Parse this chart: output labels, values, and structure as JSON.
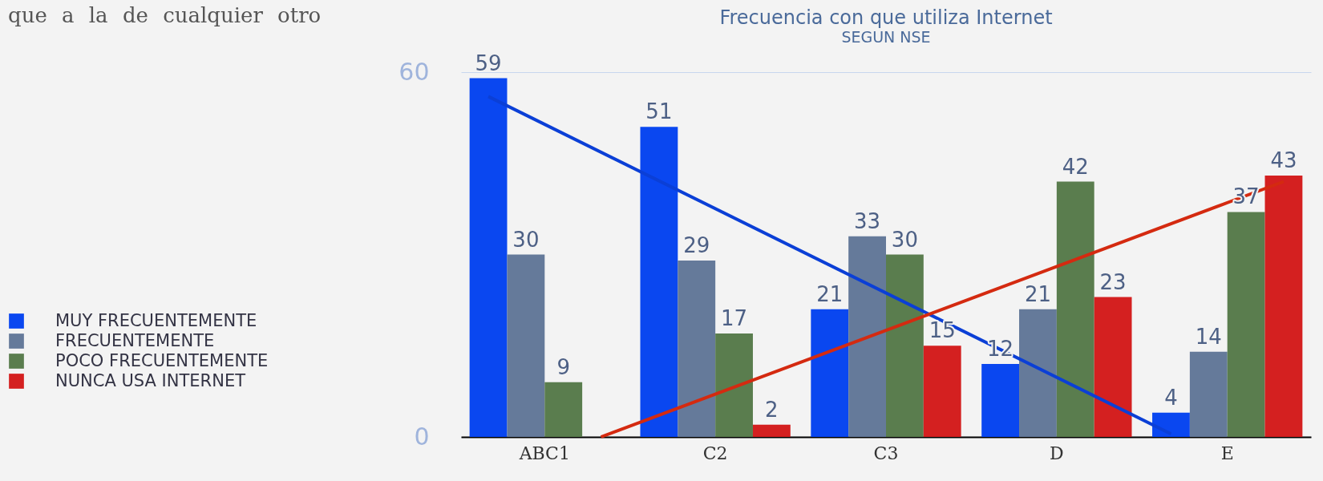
{
  "chart_data": {
    "type": "bar",
    "title": "Frecuencia con que utiliza Internet",
    "subtitle": "SEGUN NSE",
    "annotations": [
      "que a la de cualquier otro"
    ],
    "categories": [
      "ABC1",
      "C2",
      "C3",
      "D",
      "E"
    ],
    "series": [
      {
        "name": "MUY FRECUENTEMENTE",
        "color": "#0a47f0",
        "values": [
          59,
          51,
          21,
          12,
          4
        ],
        "value_labels": [
          "59",
          "51",
          "21",
          "12",
          "4"
        ]
      },
      {
        "name": "FRECUENTEMENTE",
        "color": "#657a9a",
        "values": [
          30,
          29,
          33,
          21,
          14
        ],
        "value_labels": [
          "30",
          "29",
          "33",
          "21",
          "14"
        ]
      },
      {
        "name": "POCO FRECUENTEMENTE",
        "color": "#5a7d4e",
        "values": [
          9,
          17,
          30,
          42,
          37
        ],
        "value_labels": [
          "9",
          "17",
          "30",
          "42",
          "37"
        ]
      },
      {
        "name": "NUNCA USA INTERNET",
        "color": "#d42020",
        "values": [
          null,
          2,
          15,
          23,
          43
        ],
        "value_labels": [
          null,
          "2",
          "15",
          "23",
          "43"
        ]
      },
      {
        "type": "line",
        "color": "#0b3fd6",
        "x": [
          "ABC1",
          "E"
        ],
        "values": [
          56,
          0.5
        ]
      },
      {
        "type": "line",
        "color": "#d42a10",
        "x": [
          "ABC1",
          "E"
        ],
        "values": [
          0,
          42
        ]
      }
    ],
    "ylim": [
      0,
      60
    ],
    "yticks": [
      0,
      60
    ],
    "grid": "y",
    "legend": "left"
  }
}
